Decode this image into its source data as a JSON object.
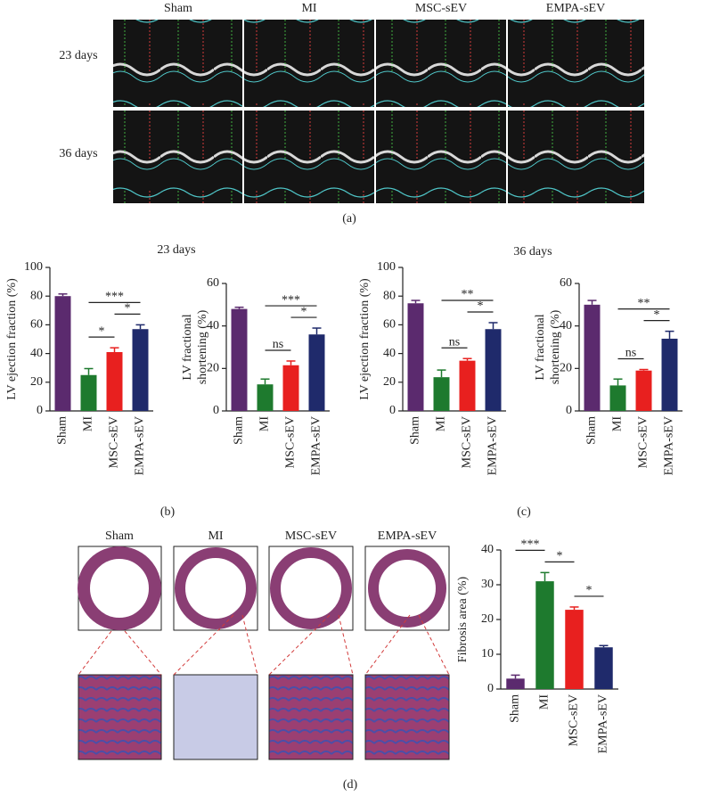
{
  "figure": {
    "panel_a": {
      "columns": [
        "Sham",
        "MI",
        "MSC-sEV",
        "EMPA-sEV"
      ],
      "rows": [
        "23 days",
        "36 days"
      ],
      "label": "(a)"
    },
    "panel_b": {
      "title": "23 days",
      "label": "(b)"
    },
    "panel_c": {
      "title": "36 days",
      "label": "(c)"
    },
    "panel_d": {
      "columns": [
        "Sham",
        "MI",
        "MSC-sEV",
        "EMPA-sEV"
      ],
      "label": "(d)"
    }
  },
  "chart_data": [
    {
      "type": "bar",
      "ylabel": [
        "LV ejection fraction (%)"
      ],
      "categories": [
        "Sham",
        "MI",
        "MSC-sEV",
        "EMPA-sEV"
      ],
      "values": [
        80,
        25,
        41,
        57
      ],
      "errors": [
        1.5,
        4.5,
        3,
        3
      ],
      "colors": [
        "#5b2a6e",
        "#1e7a2e",
        "#e8201f",
        "#1f2a6b"
      ],
      "ylim": [
        0,
        100
      ],
      "yticks": [
        0,
        20,
        40,
        60,
        80,
        100
      ],
      "annotations": [
        {
          "text": "*",
          "between": [
            "MI",
            "MSC-sEV"
          ]
        },
        {
          "text": "*",
          "between": [
            "MSC-sEV",
            "EMPA-sEV"
          ]
        },
        {
          "text": "***",
          "between": [
            "MI",
            "EMPA-sEV"
          ]
        }
      ]
    },
    {
      "type": "bar",
      "ylabel": [
        "LV fractional",
        "shortening (%)"
      ],
      "categories": [
        "Sham",
        "MI",
        "MSC-sEV",
        "EMPA-sEV"
      ],
      "values": [
        48,
        12.5,
        21.5,
        36
      ],
      "errors": [
        0.8,
        2.5,
        2,
        3
      ],
      "colors": [
        "#5b2a6e",
        "#1e7a2e",
        "#e8201f",
        "#1f2a6b"
      ],
      "ylim": [
        0,
        60
      ],
      "yticks": [
        0,
        20,
        40,
        60
      ],
      "annotations": [
        {
          "text": "ns",
          "between": [
            "MI",
            "MSC-sEV"
          ]
        },
        {
          "text": "*",
          "between": [
            "MSC-sEV",
            "EMPA-sEV"
          ]
        },
        {
          "text": "***",
          "between": [
            "MI",
            "EMPA-sEV"
          ]
        }
      ]
    },
    {
      "type": "bar",
      "ylabel": [
        "LV ejection fraction (%)"
      ],
      "categories": [
        "Sham",
        "MI",
        "MSC-sEV",
        "EMPA-sEV"
      ],
      "values": [
        75,
        23.5,
        35,
        57
      ],
      "errors": [
        2,
        5,
        1.5,
        4.5
      ],
      "colors": [
        "#5b2a6e",
        "#1e7a2e",
        "#e8201f",
        "#1f2a6b"
      ],
      "ylim": [
        0,
        100
      ],
      "yticks": [
        0,
        20,
        40,
        60,
        80,
        100
      ],
      "annotations": [
        {
          "text": "ns",
          "between": [
            "MI",
            "MSC-sEV"
          ]
        },
        {
          "text": "*",
          "between": [
            "MSC-sEV",
            "EMPA-sEV"
          ]
        },
        {
          "text": "**",
          "between": [
            "MI",
            "EMPA-sEV"
          ]
        }
      ]
    },
    {
      "type": "bar",
      "ylabel": [
        "LV fractional",
        "shortening (%)"
      ],
      "categories": [
        "Sham",
        "MI",
        "MSC-sEV",
        "EMPA-sEV"
      ],
      "values": [
        50,
        12,
        19,
        34
      ],
      "errors": [
        2,
        3,
        0.5,
        3.5
      ],
      "colors": [
        "#5b2a6e",
        "#1e7a2e",
        "#e8201f",
        "#1f2a6b"
      ],
      "ylim": [
        0,
        60
      ],
      "yticks": [
        0,
        20,
        40,
        60
      ],
      "annotations": [
        {
          "text": "ns",
          "between": [
            "MI",
            "MSC-sEV"
          ]
        },
        {
          "text": "*",
          "between": [
            "MSC-sEV",
            "EMPA-sEV"
          ]
        },
        {
          "text": "**",
          "between": [
            "MI",
            "EMPA-sEV"
          ]
        }
      ]
    },
    {
      "type": "bar",
      "ylabel": [
        "Fibrosis area (%)"
      ],
      "categories": [
        "Sham",
        "MI",
        "MSC-sEV",
        "EMPA-sEV"
      ],
      "values": [
        3,
        31,
        22.8,
        12
      ],
      "errors": [
        1,
        2.5,
        0.8,
        0.5
      ],
      "colors": [
        "#5b2a6e",
        "#1e7a2e",
        "#e8201f",
        "#1f2a6b"
      ],
      "ylim": [
        0,
        40
      ],
      "yticks": [
        0,
        10,
        20,
        30,
        40
      ],
      "annotations": [
        {
          "text": "*",
          "between": [
            "MSC-sEV",
            "EMPA-sEV"
          ]
        },
        {
          "text": "*",
          "between": [
            "MI",
            "MSC-sEV"
          ]
        },
        {
          "text": "***",
          "between": [
            "Sham",
            "MI"
          ]
        }
      ]
    }
  ]
}
